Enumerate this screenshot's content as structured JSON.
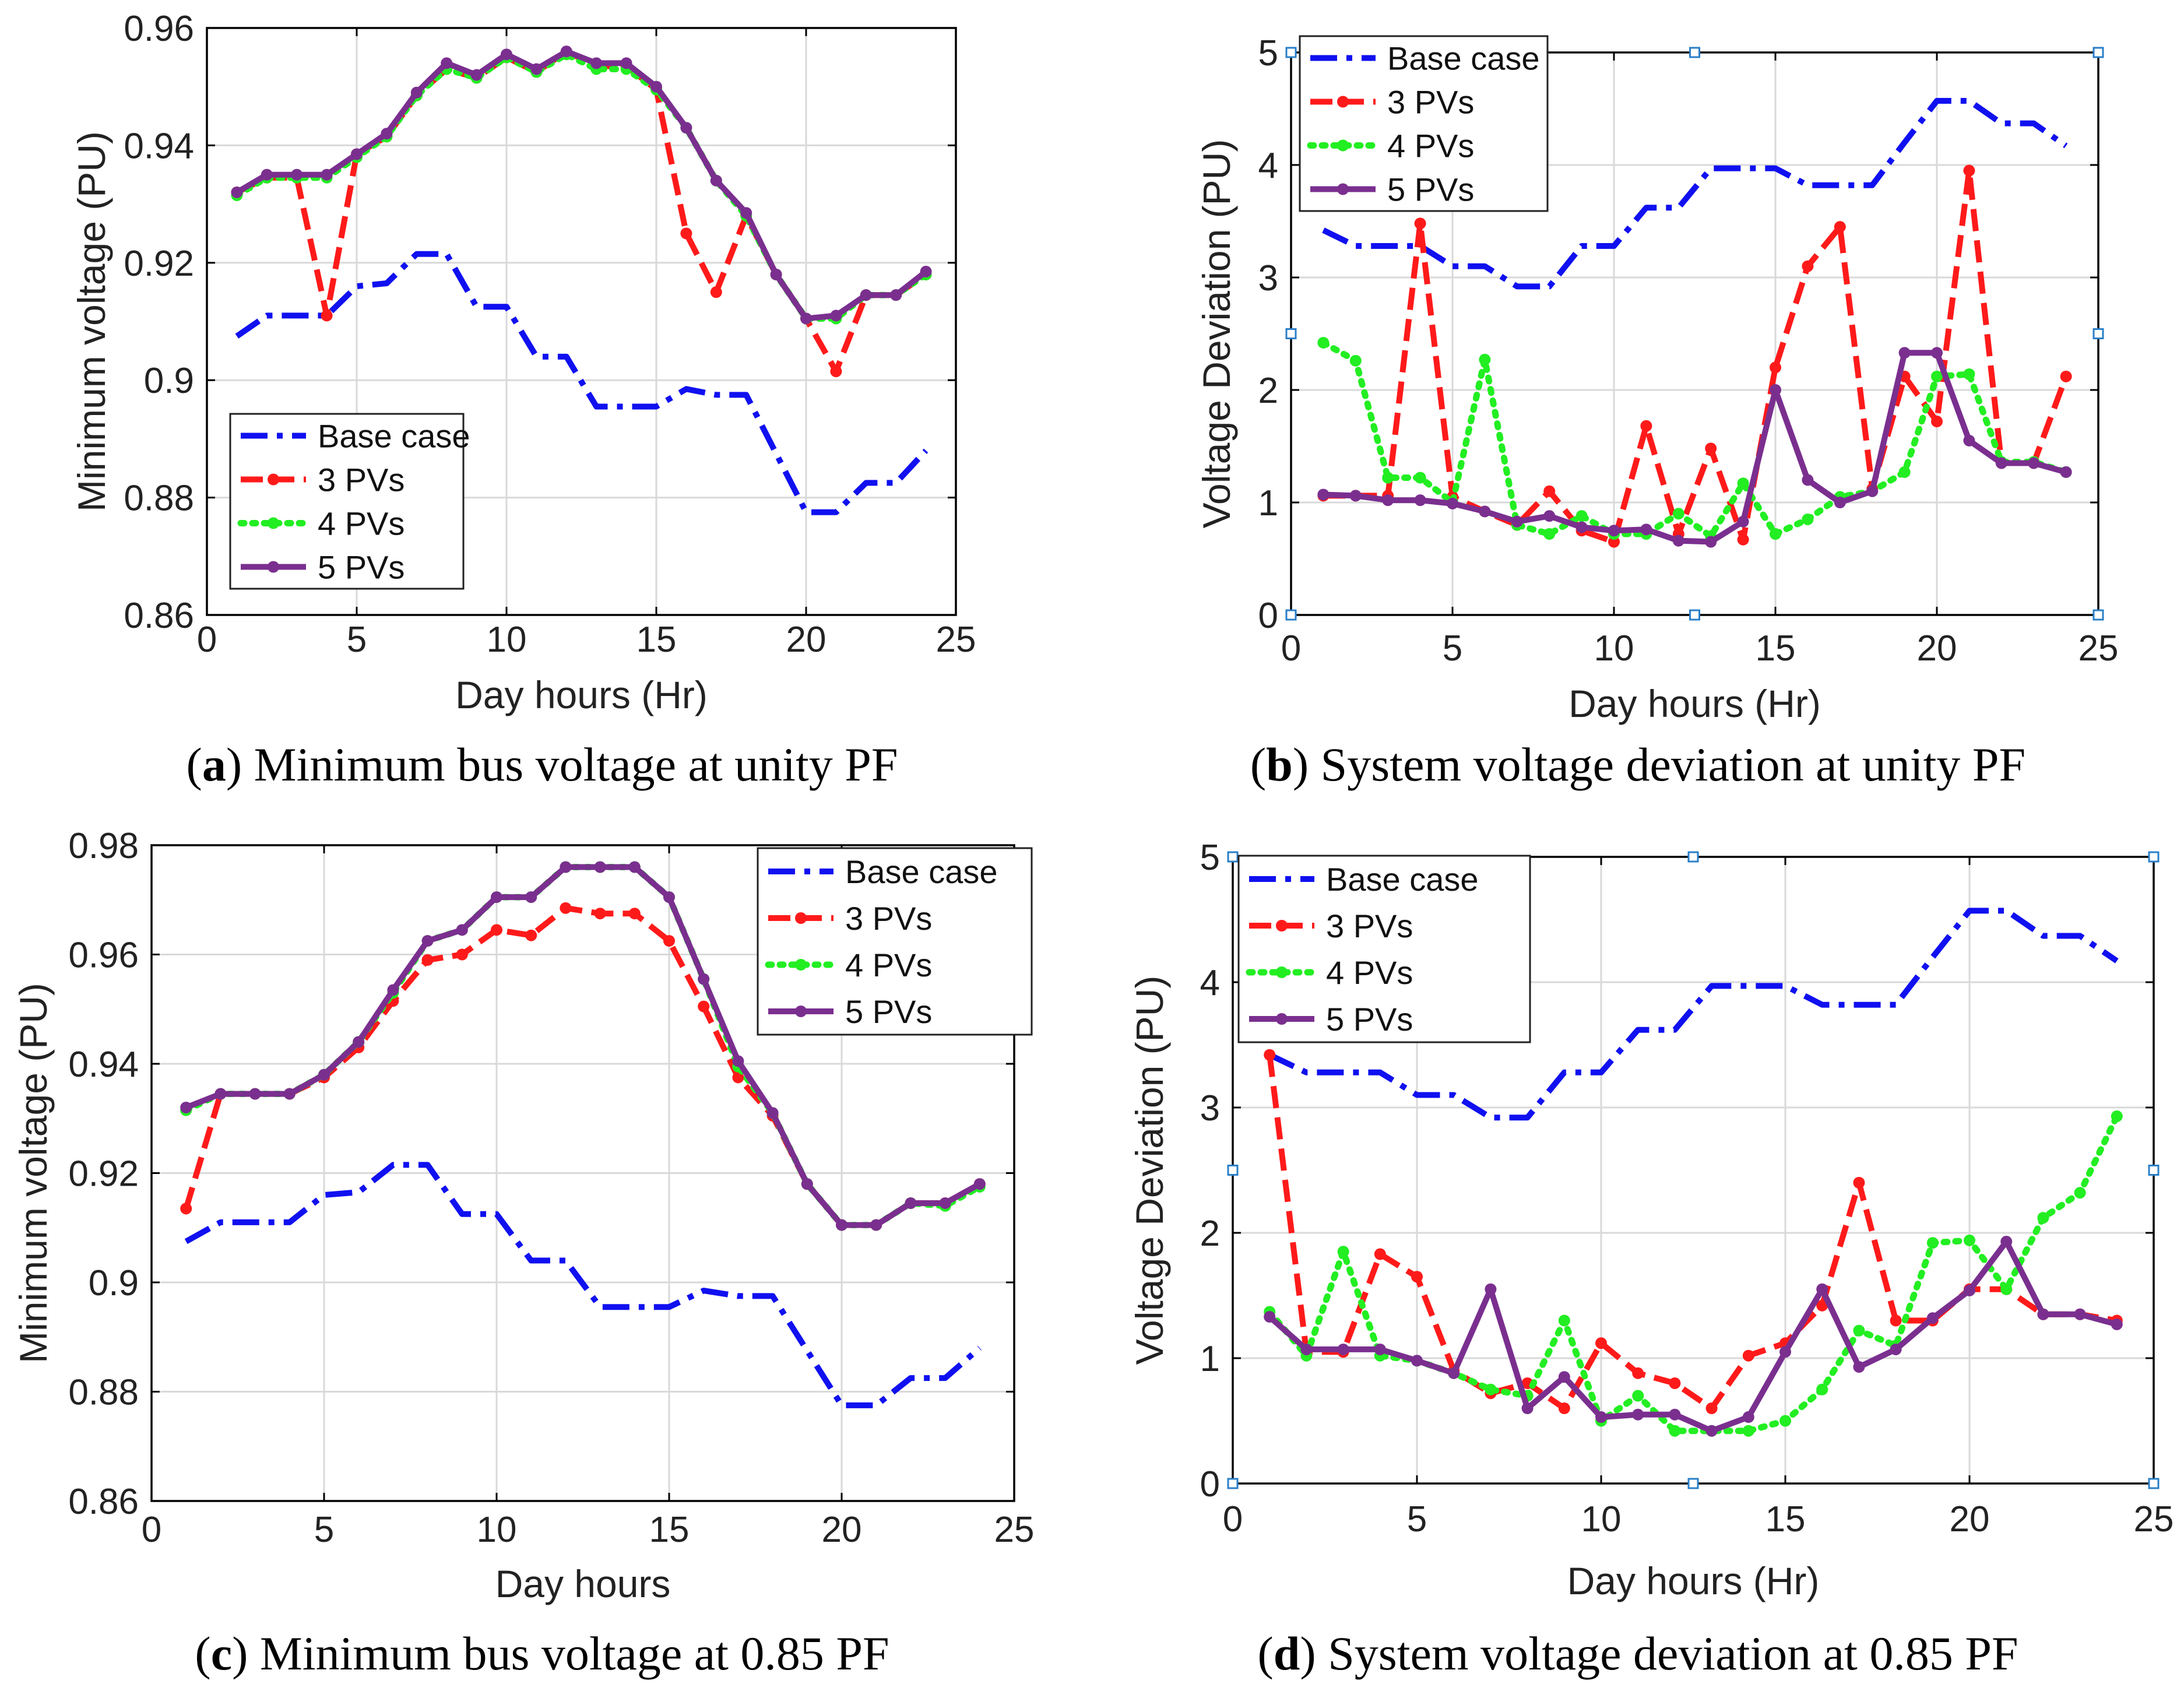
{
  "colors": {
    "base": "#1010f0",
    "pv3": "#ff1a1a",
    "pv4": "#22ee22",
    "pv5": "#7a2f8f",
    "grid": "#d9d9d9",
    "axis": "#000000",
    "marker_box": "#2a7fc8"
  },
  "chart_data": [
    {
      "id": "a",
      "type": "line",
      "caption": {
        "letter": "a",
        "text": "Minimum bus voltage at unity PF"
      },
      "xlabel": "Day hours (Hr)",
      "ylabel": "Minimum voltage (PU)",
      "xlim": [
        0,
        25
      ],
      "ylim": [
        0.86,
        0.96
      ],
      "xticks": [
        0,
        5,
        10,
        15,
        20,
        25
      ],
      "yticks": [
        0.86,
        0.88,
        0.9,
        0.92,
        0.94,
        0.96
      ],
      "ytick_labels": [
        "0.86",
        "0.88",
        "0.9",
        "0.92",
        "0.94",
        "0.96"
      ],
      "grid": true,
      "legend_position": "bottom-left",
      "x": [
        1,
        2,
        3,
        4,
        5,
        6,
        7,
        8,
        9,
        10,
        11,
        12,
        13,
        14,
        15,
        16,
        17,
        18,
        19,
        20,
        21,
        22,
        23,
        24
      ],
      "series": [
        {
          "name": "Base case",
          "style": "base",
          "values": [
            0.9075,
            0.911,
            0.911,
            0.911,
            0.916,
            0.9165,
            0.9215,
            0.9215,
            0.9125,
            0.9125,
            0.904,
            0.904,
            0.8955,
            0.8955,
            0.8955,
            0.8985,
            0.8975,
            0.8975,
            0.8875,
            0.8775,
            0.8775,
            0.8825,
            0.8825,
            0.888
          ]
        },
        {
          "name": "3 PVs",
          "style": "pv3",
          "values": [
            0.932,
            0.9345,
            0.9345,
            0.911,
            0.9385,
            0.9415,
            0.9485,
            0.953,
            0.9515,
            0.955,
            0.9525,
            0.956,
            0.9535,
            0.9535,
            0.9495,
            0.925,
            0.915,
            0.928,
            0.918,
            0.9105,
            0.9015,
            0.9145,
            0.9145,
            0.918
          ]
        },
        {
          "name": "4 PVs",
          "style": "pv4",
          "values": [
            0.9315,
            0.9345,
            0.9345,
            0.9345,
            0.938,
            0.9415,
            0.9485,
            0.953,
            0.9515,
            0.955,
            0.9525,
            0.9555,
            0.953,
            0.953,
            0.9495,
            0.943,
            0.934,
            0.928,
            0.918,
            0.9105,
            0.9105,
            0.9145,
            0.9145,
            0.918
          ]
        },
        {
          "name": "5 PVs",
          "style": "pv5",
          "values": [
            0.932,
            0.935,
            0.935,
            0.935,
            0.9385,
            0.942,
            0.949,
            0.954,
            0.952,
            0.9555,
            0.953,
            0.956,
            0.954,
            0.954,
            0.95,
            0.943,
            0.934,
            0.9285,
            0.918,
            0.9105,
            0.911,
            0.9145,
            0.9145,
            0.9185
          ]
        }
      ]
    },
    {
      "id": "b",
      "type": "line",
      "caption": {
        "letter": "b",
        "text": "System voltage deviation at unity PF"
      },
      "xlabel": "Day hours (Hr)",
      "ylabel": "Voltage Deviation (PU)",
      "xlim": [
        0,
        25
      ],
      "ylim": [
        0,
        5
      ],
      "xticks": [
        0,
        5,
        10,
        15,
        20,
        25
      ],
      "yticks": [
        0,
        1,
        2,
        3,
        4,
        5
      ],
      "ytick_labels": [
        "0",
        "1",
        "2",
        "3",
        "4",
        "5"
      ],
      "grid": true,
      "selection_handles": true,
      "legend_position": "top-left",
      "x": [
        1,
        2,
        3,
        4,
        5,
        6,
        7,
        8,
        9,
        10,
        11,
        12,
        13,
        14,
        15,
        16,
        17,
        18,
        19,
        20,
        21,
        22,
        23,
        24
      ],
      "series": [
        {
          "name": "Base case",
          "style": "base",
          "values": [
            3.42,
            3.28,
            3.28,
            3.28,
            3.1,
            3.1,
            2.92,
            2.92,
            3.28,
            3.28,
            3.62,
            3.62,
            3.97,
            3.97,
            3.97,
            3.82,
            3.82,
            3.82,
            4.2,
            4.57,
            4.57,
            4.37,
            4.37,
            4.17
          ]
        },
        {
          "name": "3 PVs",
          "style": "pv3",
          "values": [
            1.06,
            1.06,
            1.06,
            3.48,
            1.05,
            0.92,
            0.8,
            1.1,
            0.75,
            0.65,
            1.68,
            0.72,
            1.48,
            0.67,
            2.2,
            3.1,
            3.45,
            1.12,
            2.12,
            1.72,
            3.95,
            1.35,
            1.35,
            2.12
          ]
        },
        {
          "name": "4 PVs",
          "style": "pv4",
          "values": [
            2.42,
            2.26,
            1.22,
            1.22,
            1.0,
            2.27,
            0.8,
            0.72,
            0.88,
            0.72,
            0.72,
            0.9,
            0.7,
            1.17,
            0.72,
            0.85,
            1.05,
            1.1,
            1.27,
            2.12,
            2.14,
            1.36,
            1.36,
            1.27
          ]
        },
        {
          "name": "5 PVs",
          "style": "pv5",
          "values": [
            1.07,
            1.06,
            1.02,
            1.02,
            0.99,
            0.92,
            0.83,
            0.88,
            0.78,
            0.75,
            0.76,
            0.66,
            0.65,
            0.83,
            2.0,
            1.2,
            1.0,
            1.1,
            2.33,
            2.33,
            1.55,
            1.35,
            1.35,
            1.27
          ]
        }
      ]
    },
    {
      "id": "c",
      "type": "line",
      "caption": {
        "letter": "c",
        "text": "Minimum bus voltage at 0.85 PF"
      },
      "xlabel": "Day hours",
      "ylabel": "Minimum voltage (PU)",
      "xlim": [
        0,
        25
      ],
      "ylim": [
        0.86,
        0.98
      ],
      "xticks": [
        0,
        5,
        10,
        15,
        20,
        25
      ],
      "yticks": [
        0.86,
        0.88,
        0.9,
        0.92,
        0.94,
        0.96,
        0.98
      ],
      "ytick_labels": [
        "0.86",
        "0.88",
        "0.9",
        "0.92",
        "0.94",
        "0.96",
        "0.98"
      ],
      "grid": true,
      "legend_position": "top-right",
      "x": [
        1,
        2,
        3,
        4,
        5,
        6,
        7,
        8,
        9,
        10,
        11,
        12,
        13,
        14,
        15,
        16,
        17,
        18,
        19,
        20,
        21,
        22,
        23,
        24
      ],
      "series": [
        {
          "name": "Base case",
          "style": "base",
          "values": [
            0.9075,
            0.911,
            0.911,
            0.911,
            0.916,
            0.9165,
            0.9215,
            0.9215,
            0.9125,
            0.9125,
            0.904,
            0.904,
            0.8955,
            0.8955,
            0.8955,
            0.8985,
            0.8975,
            0.8975,
            0.8875,
            0.8775,
            0.8775,
            0.8825,
            0.8825,
            0.888
          ]
        },
        {
          "name": "3 PVs",
          "style": "pv3",
          "values": [
            0.9135,
            0.9345,
            0.9345,
            0.9345,
            0.9375,
            0.943,
            0.9515,
            0.959,
            0.96,
            0.9645,
            0.9635,
            0.9685,
            0.9675,
            0.9675,
            0.9625,
            0.9505,
            0.9375,
            0.9305,
            0.918,
            0.9105,
            0.9105,
            0.9145,
            0.9145,
            0.918
          ]
        },
        {
          "name": "4 PVs",
          "style": "pv4",
          "values": [
            0.9315,
            0.9345,
            0.9345,
            0.9345,
            0.938,
            0.944,
            0.953,
            0.9625,
            0.9645,
            0.9705,
            0.9705,
            0.976,
            0.976,
            0.976,
            0.9705,
            0.9555,
            0.9395,
            0.931,
            0.918,
            0.9105,
            0.9105,
            0.9145,
            0.914,
            0.9175
          ]
        },
        {
          "name": "5 PVs",
          "style": "pv5",
          "values": [
            0.932,
            0.9345,
            0.9345,
            0.9345,
            0.938,
            0.944,
            0.9535,
            0.9625,
            0.9645,
            0.9705,
            0.9705,
            0.976,
            0.976,
            0.976,
            0.9705,
            0.9555,
            0.9405,
            0.931,
            0.918,
            0.9105,
            0.9105,
            0.9145,
            0.9145,
            0.918
          ]
        }
      ]
    },
    {
      "id": "d",
      "type": "line",
      "caption": {
        "letter": "d",
        "text": "System voltage deviation at 0.85 PF"
      },
      "xlabel": "Day hours (Hr)",
      "ylabel": "Voltage Deviation (PU)",
      "xlim": [
        0,
        25
      ],
      "ylim": [
        0,
        5
      ],
      "xticks": [
        0,
        5,
        10,
        15,
        20,
        25
      ],
      "yticks": [
        0,
        1,
        2,
        3,
        4,
        5
      ],
      "ytick_labels": [
        "0",
        "1",
        "2",
        "3",
        "4",
        "5"
      ],
      "grid": true,
      "selection_handles": true,
      "legend_position": "top-left",
      "x": [
        1,
        2,
        3,
        4,
        5,
        6,
        7,
        8,
        9,
        10,
        11,
        12,
        13,
        14,
        15,
        16,
        17,
        18,
        19,
        20,
        21,
        22,
        23,
        24
      ],
      "series": [
        {
          "name": "Base case",
          "style": "base",
          "values": [
            3.42,
            3.28,
            3.28,
            3.28,
            3.1,
            3.1,
            2.92,
            2.92,
            3.28,
            3.28,
            3.62,
            3.62,
            3.97,
            3.97,
            3.97,
            3.82,
            3.82,
            3.82,
            4.2,
            4.57,
            4.57,
            4.37,
            4.37,
            4.17
          ]
        },
        {
          "name": "3 PVs",
          "style": "pv3",
          "values": [
            3.42,
            1.05,
            1.05,
            1.83,
            1.65,
            0.9,
            0.72,
            0.8,
            0.6,
            1.12,
            0.88,
            0.8,
            0.6,
            1.02,
            1.12,
            1.42,
            2.4,
            1.3,
            1.3,
            1.55,
            1.55,
            1.35,
            1.35,
            1.3
          ]
        },
        {
          "name": "4 PVs",
          "style": "pv4",
          "values": [
            1.37,
            1.02,
            1.85,
            1.02,
            0.98,
            0.88,
            0.75,
            0.7,
            1.3,
            0.5,
            0.7,
            0.42,
            0.42,
            0.42,
            0.5,
            0.75,
            1.22,
            1.1,
            1.92,
            1.94,
            1.55,
            2.12,
            2.32,
            2.93
          ]
        },
        {
          "name": "5 PVs",
          "style": "pv5",
          "values": [
            1.33,
            1.07,
            1.07,
            1.07,
            0.98,
            0.88,
            1.55,
            0.6,
            0.85,
            0.53,
            0.55,
            0.55,
            0.42,
            0.53,
            1.05,
            1.55,
            0.93,
            1.07,
            1.32,
            1.54,
            1.93,
            1.35,
            1.35,
            1.27
          ]
        }
      ]
    }
  ]
}
